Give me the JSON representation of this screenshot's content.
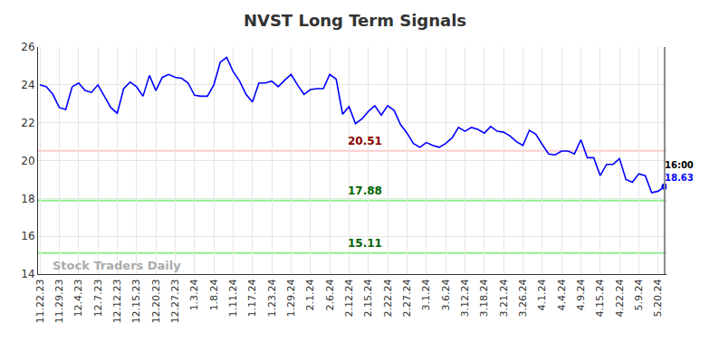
{
  "chart_data": {
    "type": "line",
    "title": "NVST Long Term Signals",
    "categories": [
      "11.22.23",
      null,
      null,
      "11.29.23",
      null,
      null,
      "12.4.23",
      null,
      null,
      "12.7.23",
      null,
      null,
      "12.12.23",
      null,
      null,
      "12.15.23",
      null,
      null,
      "12.20.23",
      null,
      null,
      "12.27.23",
      null,
      null,
      "1.3.24",
      null,
      null,
      "1.8.24",
      null,
      null,
      "1.11.24",
      null,
      null,
      "1.17.24",
      null,
      null,
      "1.23.24",
      null,
      null,
      "1.29.24",
      null,
      null,
      "2.1.24",
      null,
      null,
      "2.6.24",
      null,
      null,
      "2.12.24",
      null,
      null,
      "2.15.24",
      null,
      null,
      "2.22.24",
      null,
      null,
      "2.27.24",
      null,
      null,
      "3.1.24",
      null,
      null,
      "3.6.24",
      null,
      null,
      "3.12.24",
      null,
      null,
      "3.18.24",
      null,
      null,
      "3.21.24",
      null,
      null,
      "3.26.24",
      null,
      null,
      "4.1.24",
      null,
      null,
      "4.4.24",
      null,
      null,
      "4.9.24",
      null,
      null,
      "4.15.24",
      null,
      null,
      "4.22.24",
      null,
      null,
      "5.9.24",
      null,
      null,
      "5.20.24",
      null
    ],
    "values": [
      24.0,
      23.9,
      23.5,
      22.8,
      22.7,
      23.9,
      24.1,
      23.7,
      23.6,
      24.0,
      23.4,
      22.8,
      22.5,
      23.8,
      24.15,
      23.9,
      23.4,
      24.5,
      23.7,
      24.4,
      24.55,
      24.4,
      24.35,
      24.1,
      23.45,
      23.4,
      23.4,
      24.0,
      25.2,
      25.45,
      24.7,
      24.2,
      23.5,
      23.1,
      24.1,
      24.1,
      24.2,
      23.9,
      24.25,
      24.55,
      24.0,
      23.5,
      23.75,
      23.8,
      23.8,
      24.55,
      24.3,
      22.45,
      22.85,
      21.95,
      22.2,
      22.6,
      22.9,
      22.4,
      22.9,
      22.65,
      21.9,
      21.45,
      20.9,
      20.7,
      20.95,
      20.8,
      20.7,
      20.9,
      21.2,
      21.75,
      21.55,
      21.75,
      21.65,
      21.45,
      21.8,
      21.55,
      21.5,
      21.3,
      21.0,
      20.8,
      21.6,
      21.4,
      20.85,
      20.35,
      20.3,
      20.5,
      20.5,
      20.35,
      21.1,
      20.15,
      20.15,
      19.2,
      19.8,
      19.8,
      20.1,
      19.0,
      18.85,
      19.3,
      19.2,
      18.3,
      18.38,
      18.63
    ],
    "color": "#0000ff",
    "ylim": [
      14,
      26
    ],
    "yticks": [
      14,
      16,
      18,
      20,
      22,
      24,
      26
    ],
    "grid": true,
    "levels": [
      {
        "value": 20.51,
        "color": "#ffcccc",
        "label_color": "#8b0000"
      },
      {
        "value": 17.88,
        "color": "#90ee90",
        "label_color": "#006400"
      },
      {
        "value": 15.11,
        "color": "#90ee90",
        "label_color": "#006400"
      }
    ],
    "last_point": {
      "time": "16:00",
      "value": 18.63
    },
    "watermark": "Stock Traders Daily"
  }
}
